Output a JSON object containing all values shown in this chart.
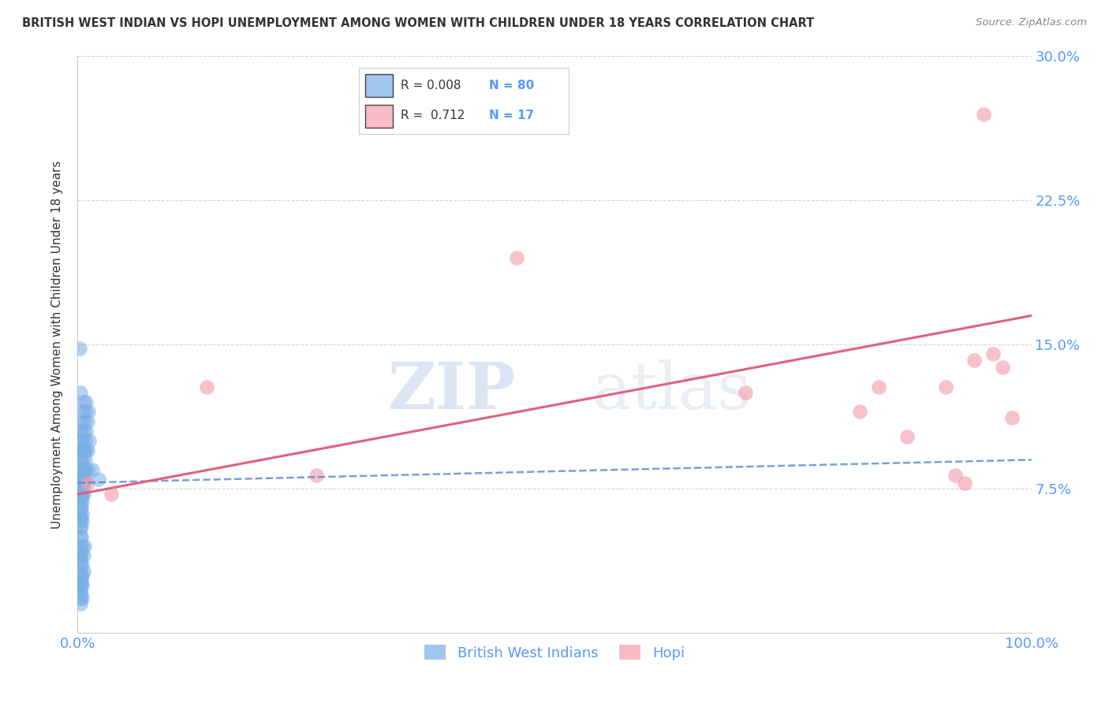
{
  "title": "BRITISH WEST INDIAN VS HOPI UNEMPLOYMENT AMONG WOMEN WITH CHILDREN UNDER 18 YEARS CORRELATION CHART",
  "source": "Source: ZipAtlas.com",
  "ylabel": "Unemployment Among Women with Children Under 18 years",
  "watermark_zip": "ZIP",
  "watermark_atlas": "atlas",
  "xlim": [
    0,
    100
  ],
  "ylim": [
    0,
    30
  ],
  "yticks": [
    0,
    7.5,
    15.0,
    22.5,
    30.0
  ],
  "xticks": [
    0,
    10,
    20,
    30,
    40,
    50,
    60,
    70,
    80,
    90,
    100
  ],
  "xtick_labels": [
    "0.0%",
    "",
    "",
    "",
    "",
    "",
    "",
    "",
    "",
    "",
    "100.0%"
  ],
  "ytick_labels_right": [
    "",
    "7.5%",
    "15.0%",
    "22.5%",
    "30.0%"
  ],
  "legend_labels": [
    "British West Indians",
    "Hopi"
  ],
  "R_bwi": 0.008,
  "N_bwi": 80,
  "R_hopi": 0.712,
  "N_hopi": 17,
  "color_bwi": "#7aaee8",
  "color_hopi": "#f4a0b0",
  "color_bwi_line": "#5588cc",
  "color_hopi_line": "#e06080",
  "color_tick_labels": "#5599ff",
  "background": "#ffffff",
  "bwi_x": [
    0.2,
    0.3,
    0.4,
    0.5,
    0.6,
    0.7,
    0.8,
    0.9,
    1.0,
    1.1,
    0.2,
    0.3,
    0.4,
    0.5,
    0.6,
    0.7,
    0.8,
    0.9,
    1.0,
    1.2,
    0.2,
    0.3,
    0.4,
    0.5,
    0.6,
    0.7,
    0.8,
    0.9,
    1.0,
    0.5,
    0.3,
    0.4,
    0.5,
    0.6,
    0.7,
    0.8,
    0.4,
    0.5,
    0.6,
    0.7,
    0.3,
    0.4,
    0.5,
    0.6,
    0.3,
    0.4,
    0.5,
    0.6,
    0.3,
    0.4,
    0.5,
    0.3,
    0.4,
    0.5,
    0.3,
    0.4,
    0.3,
    0.4,
    0.3,
    0.3,
    1.5,
    0.3,
    0.4,
    0.5,
    0.6,
    0.7,
    0.4,
    0.5,
    0.6,
    0.3,
    0.4,
    0.5,
    0.3,
    0.4,
    0.3,
    0.4,
    0.5,
    0.3,
    2.2,
    0.5
  ],
  "bwi_y": [
    14.8,
    12.5,
    11.0,
    11.5,
    12.0,
    11.0,
    11.5,
    12.0,
    11.0,
    11.5,
    10.0,
    10.5,
    9.5,
    10.0,
    10.5,
    9.5,
    10.0,
    10.5,
    9.5,
    10.0,
    9.0,
    9.5,
    8.5,
    9.0,
    9.5,
    8.5,
    9.0,
    9.5,
    8.5,
    8.8,
    8.0,
    8.5,
    7.8,
    8.2,
    8.0,
    8.5,
    7.5,
    8.0,
    7.5,
    8.0,
    7.0,
    7.5,
    7.2,
    7.8,
    6.5,
    7.0,
    6.8,
    7.2,
    6.0,
    6.5,
    6.2,
    5.5,
    6.0,
    5.8,
    5.0,
    5.5,
    4.5,
    5.0,
    4.0,
    3.5,
    8.5,
    3.8,
    4.2,
    4.5,
    4.0,
    4.5,
    3.0,
    3.5,
    3.2,
    2.5,
    2.8,
    3.0,
    2.2,
    2.5,
    1.8,
    2.0,
    2.5,
    1.5,
    8.0,
    1.8
  ],
  "hopi_x": [
    1.0,
    3.5,
    13.5,
    25.0,
    46.0,
    70.0,
    82.0,
    84.0,
    87.0,
    91.0,
    92.0,
    93.0,
    94.0,
    95.0,
    96.0,
    97.0,
    98.0
  ],
  "hopi_y": [
    7.8,
    7.2,
    12.8,
    8.2,
    19.5,
    12.5,
    11.5,
    12.8,
    10.2,
    12.8,
    8.2,
    7.8,
    14.2,
    27.0,
    14.5,
    13.8,
    11.2
  ],
  "hopi_trendline_start_y": 7.2,
  "hopi_trendline_end_y": 16.5,
  "bwi_trendline_start_y": 7.8,
  "bwi_trendline_end_y": 9.0
}
